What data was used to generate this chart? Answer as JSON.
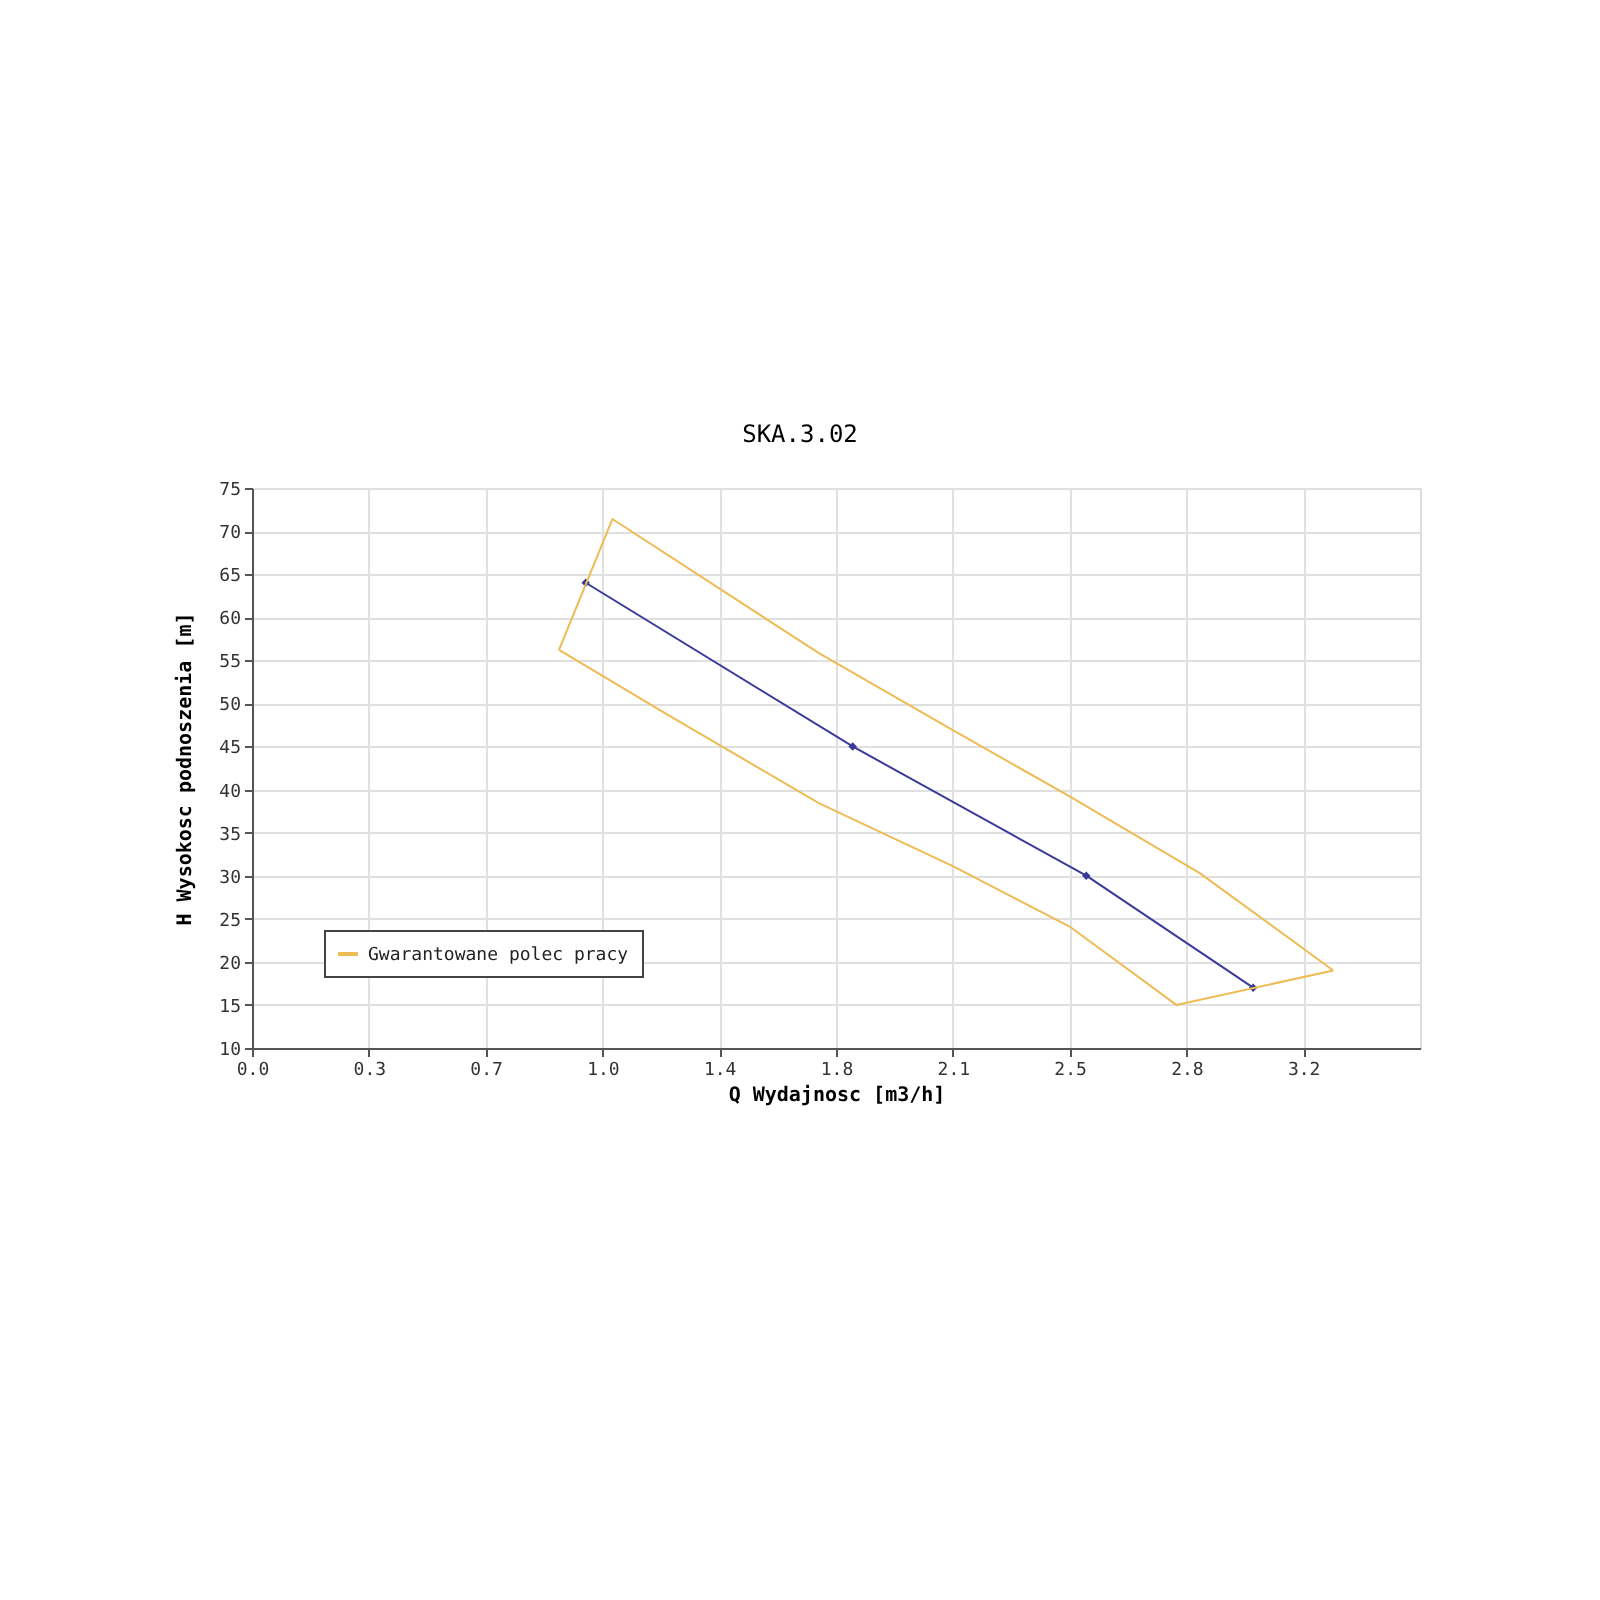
{
  "chart_data": {
    "type": "line",
    "title": "SKA.3.02",
    "xlabel": "Q Wydajnosc [m3/h]",
    "ylabel": "H Wysokosc podnoszenia [m]",
    "xlim": [
      0,
      3.5
    ],
    "ylim": [
      10,
      75
    ],
    "xticks": [
      {
        "value": 0,
        "label": "0.0"
      },
      {
        "value": 0.35,
        "label": "0.3"
      },
      0.7,
      {
        "value": 1.05,
        "label": "1.0"
      },
      1.4,
      {
        "value": 1.75,
        "label": "1.8"
      },
      2.1,
      {
        "value": 2.45,
        "label": "2.5"
      },
      2.8,
      {
        "value": 3.15,
        "label": "3.2"
      }
    ],
    "yticks": [
      10,
      15,
      20,
      25,
      30,
      35,
      40,
      45,
      50,
      55,
      60,
      65,
      70,
      75
    ],
    "grid": true,
    "legend": "bottom left",
    "series": [
      {
        "color": "#3a3a9a",
        "marker": "diamond",
        "x": [
          1.0,
          1.8,
          2.5,
          3.0
        ],
        "values": [
          64,
          45,
          30,
          17
        ]
      },
      {
        "name": "Gwarantowane polec pracy",
        "color": "#eebb55",
        "marker": "none",
        "x": [
          0.92,
          1.08,
          1.7,
          2.1,
          2.45,
          2.84,
          3.24
        ],
        "values": [
          56.2,
          71.4,
          55.8,
          46.9,
          39.2,
          30.3,
          19
        ]
      },
      {
        "color": "#eebb55",
        "marker": "none",
        "x": [
          0.92,
          1.24,
          1.7,
          2.1,
          2.45,
          2.77,
          3.24
        ],
        "values": [
          56.2,
          48.8,
          38.4,
          31.1,
          24.1,
          15,
          19
        ]
      }
    ]
  }
}
